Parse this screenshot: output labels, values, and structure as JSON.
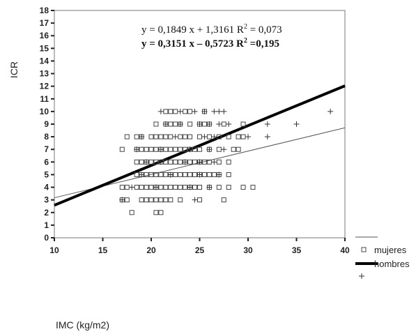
{
  "chart_data": {
    "type": "scatter",
    "xlabel": "IMC (kg/m2)",
    "ylabel": "ICR",
    "xlim": [
      10,
      40
    ],
    "ylim": [
      0,
      18
    ],
    "xticks": [
      10,
      15,
      20,
      25,
      30,
      35,
      40
    ],
    "yticks": [
      0,
      1,
      2,
      3,
      4,
      5,
      6,
      7,
      8,
      9,
      10,
      11,
      12,
      13,
      14,
      15,
      16,
      17,
      18
    ],
    "grid": false,
    "legend_position": "bottom-right",
    "equations": [
      {
        "prefix": "y = 0,1849 x + 1,3161 R",
        "sup": "2",
        "suffix": " = 0,073",
        "bold": false
      },
      {
        "prefix": "y = 0,3151 x – 0,5723 R",
        "sup": "2",
        "suffix": " =0,195",
        "bold": true
      }
    ],
    "lines": [
      {
        "series": "mujeres",
        "slope": 0.1849,
        "intercept": 1.3161,
        "x_range": [
          10,
          40
        ],
        "width": "thin",
        "color": "#555555"
      },
      {
        "series": "hombres",
        "slope": 0.3151,
        "intercept": -0.5723,
        "x_range": [
          10,
          40
        ],
        "width": "thick",
        "color": "#000000"
      }
    ],
    "series": [
      {
        "name": "mujeres",
        "marker": "square",
        "points": [
          [
            18,
            2
          ],
          [
            20.5,
            2
          ],
          [
            21,
            2
          ],
          [
            17,
            3
          ],
          [
            17.5,
            3
          ],
          [
            19,
            3
          ],
          [
            19.5,
            3
          ],
          [
            20,
            3
          ],
          [
            20.5,
            3
          ],
          [
            21,
            3
          ],
          [
            21.5,
            3
          ],
          [
            22,
            3
          ],
          [
            23,
            3
          ],
          [
            25,
            3
          ],
          [
            27.5,
            3
          ],
          [
            17,
            4
          ],
          [
            17.5,
            4
          ],
          [
            18.5,
            4
          ],
          [
            19,
            4
          ],
          [
            19.5,
            4
          ],
          [
            20,
            4
          ],
          [
            20.5,
            4
          ],
          [
            21,
            4
          ],
          [
            21.5,
            4
          ],
          [
            22,
            4
          ],
          [
            22.5,
            4
          ],
          [
            23,
            4
          ],
          [
            23.5,
            4
          ],
          [
            24,
            4
          ],
          [
            24.5,
            4
          ],
          [
            25,
            4
          ],
          [
            26,
            4
          ],
          [
            27,
            4
          ],
          [
            28,
            4
          ],
          [
            29.5,
            4
          ],
          [
            30.5,
            4
          ],
          [
            18.5,
            5
          ],
          [
            19,
            5
          ],
          [
            19.5,
            5
          ],
          [
            20,
            5
          ],
          [
            20.5,
            5
          ],
          [
            21,
            5
          ],
          [
            21.5,
            5
          ],
          [
            22,
            5
          ],
          [
            22.5,
            5
          ],
          [
            23,
            5
          ],
          [
            23.5,
            5
          ],
          [
            24,
            5
          ],
          [
            24.5,
            5
          ],
          [
            25,
            5
          ],
          [
            25.5,
            5
          ],
          [
            26,
            5
          ],
          [
            26.5,
            5
          ],
          [
            27,
            5
          ],
          [
            28,
            5
          ],
          [
            18.5,
            6
          ],
          [
            19,
            6
          ],
          [
            19.5,
            6
          ],
          [
            20,
            6
          ],
          [
            20.5,
            6
          ],
          [
            21,
            6
          ],
          [
            21.5,
            6
          ],
          [
            22,
            6
          ],
          [
            22.5,
            6
          ],
          [
            23,
            6
          ],
          [
            23.5,
            6
          ],
          [
            24,
            6
          ],
          [
            24.5,
            6
          ],
          [
            25,
            6
          ],
          [
            25.5,
            6
          ],
          [
            26,
            6
          ],
          [
            27,
            6
          ],
          [
            28,
            6
          ],
          [
            17,
            7
          ],
          [
            18.5,
            7
          ],
          [
            19,
            7
          ],
          [
            19.5,
            7
          ],
          [
            20,
            7
          ],
          [
            20.5,
            7
          ],
          [
            21,
            7
          ],
          [
            21.5,
            7
          ],
          [
            22,
            7
          ],
          [
            22.5,
            7
          ],
          [
            23,
            7
          ],
          [
            23.5,
            7
          ],
          [
            24,
            7
          ],
          [
            24.5,
            7
          ],
          [
            25,
            7
          ],
          [
            26,
            7
          ],
          [
            27,
            7
          ],
          [
            28.5,
            7
          ],
          [
            29,
            7
          ],
          [
            17.5,
            8
          ],
          [
            18.5,
            8
          ],
          [
            19,
            8
          ],
          [
            20,
            8
          ],
          [
            20.5,
            8
          ],
          [
            21,
            8
          ],
          [
            21.5,
            8
          ],
          [
            22,
            8
          ],
          [
            23,
            8
          ],
          [
            23.5,
            8
          ],
          [
            24,
            8
          ],
          [
            25,
            8
          ],
          [
            26,
            8
          ],
          [
            27,
            8
          ],
          [
            28,
            8
          ],
          [
            29,
            8
          ],
          [
            29.5,
            8
          ],
          [
            20.5,
            9
          ],
          [
            21.5,
            9
          ],
          [
            22,
            9
          ],
          [
            22.5,
            9
          ],
          [
            23,
            9
          ],
          [
            24,
            9
          ],
          [
            25,
            9
          ],
          [
            25.5,
            9
          ],
          [
            26,
            9
          ],
          [
            27.5,
            9
          ],
          [
            29.5,
            9
          ],
          [
            21.5,
            10
          ],
          [
            22,
            10
          ],
          [
            22.5,
            10
          ],
          [
            23.5,
            10
          ],
          [
            24,
            10
          ],
          [
            25.5,
            10
          ]
        ]
      },
      {
        "name": "hombres",
        "marker": "plus",
        "points": [
          [
            17,
            3
          ],
          [
            24.5,
            3
          ],
          [
            18,
            4
          ],
          [
            20.5,
            4
          ],
          [
            24,
            4
          ],
          [
            26,
            4
          ],
          [
            19,
            5
          ],
          [
            22,
            5
          ],
          [
            25,
            5
          ],
          [
            27,
            5
          ],
          [
            19.5,
            6
          ],
          [
            21,
            6
          ],
          [
            23.5,
            6
          ],
          [
            25,
            6
          ],
          [
            26.5,
            6
          ],
          [
            18.5,
            7
          ],
          [
            21,
            7
          ],
          [
            24,
            7
          ],
          [
            26,
            7
          ],
          [
            27.5,
            7
          ],
          [
            19,
            8
          ],
          [
            22.5,
            8
          ],
          [
            25.5,
            8
          ],
          [
            26.5,
            8
          ],
          [
            30,
            8
          ],
          [
            32,
            8
          ],
          [
            21.5,
            9
          ],
          [
            23,
            9
          ],
          [
            25,
            9
          ],
          [
            26,
            9
          ],
          [
            27,
            9
          ],
          [
            28,
            9
          ],
          [
            32,
            9
          ],
          [
            35,
            9
          ],
          [
            21,
            10
          ],
          [
            23,
            10
          ],
          [
            24.5,
            10
          ],
          [
            25.5,
            10
          ],
          [
            26.5,
            10
          ],
          [
            27,
            10
          ],
          [
            27.5,
            10
          ],
          [
            38.5,
            10
          ]
        ]
      }
    ],
    "legend": [
      {
        "symbol": "line-thin",
        "label": ""
      },
      {
        "symbol": "square",
        "label": "mujeres"
      },
      {
        "symbol": "line-thick",
        "label": "hombres"
      },
      {
        "symbol": "plus",
        "label": ""
      }
    ]
  }
}
